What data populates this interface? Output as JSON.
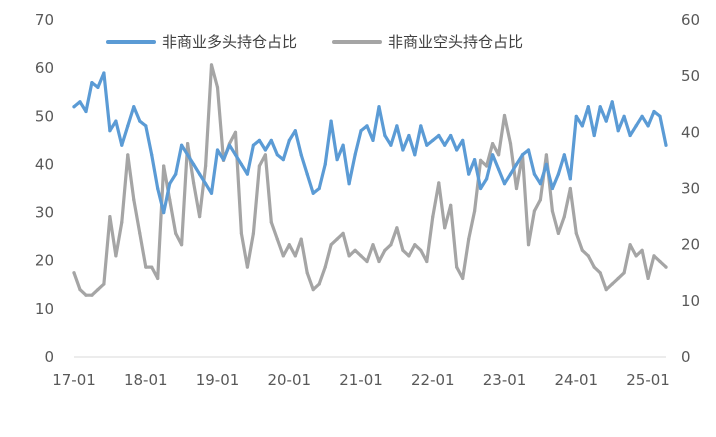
{
  "chart_data": {
    "type": "line",
    "title": "",
    "x_ticks": [
      "17-01",
      "18-01",
      "19-01",
      "20-01",
      "21-01",
      "22-01",
      "23-01",
      "24-01",
      "25-01"
    ],
    "x_range": [
      "2017-01",
      "2025-04"
    ],
    "y_left": {
      "ticks": [
        "0",
        "10",
        "20",
        "30",
        "40",
        "50",
        "60",
        "70"
      ],
      "range": [
        0,
        70
      ]
    },
    "y_right": {
      "ticks": [
        "0",
        "10",
        "20",
        "30",
        "40",
        "50",
        "60"
      ],
      "range": [
        0,
        60
      ]
    },
    "legend_position": "top",
    "grid": false,
    "series": [
      {
        "name": "非商业多头持仓占比",
        "axis": "left",
        "color": "#5b9bd5",
        "points": [
          [
            "2017-01",
            52
          ],
          [
            "2017-02",
            53
          ],
          [
            "2017-03",
            51
          ],
          [
            "2017-04",
            57
          ],
          [
            "2017-05",
            56
          ],
          [
            "2017-06",
            59
          ],
          [
            "2017-07",
            47
          ],
          [
            "2017-08",
            49
          ],
          [
            "2017-09",
            44
          ],
          [
            "2017-10",
            48
          ],
          [
            "2017-11",
            52
          ],
          [
            "2017-12",
            49
          ],
          [
            "2018-01",
            48
          ],
          [
            "2018-02",
            42
          ],
          [
            "2018-03",
            35
          ],
          [
            "2018-04",
            30
          ],
          [
            "2018-05",
            36
          ],
          [
            "2018-06",
            38
          ],
          [
            "2018-07",
            44
          ],
          [
            "2018-08",
            42
          ],
          [
            "2018-09",
            40
          ],
          [
            "2018-10",
            38
          ],
          [
            "2018-11",
            36
          ],
          [
            "2018-12",
            34
          ],
          [
            "2019-01",
            43
          ],
          [
            "2019-02",
            41
          ],
          [
            "2019-03",
            44
          ],
          [
            "2019-04",
            42
          ],
          [
            "2019-05",
            40
          ],
          [
            "2019-06",
            38
          ],
          [
            "2019-07",
            44
          ],
          [
            "2019-08",
            45
          ],
          [
            "2019-09",
            43
          ],
          [
            "2019-10",
            45
          ],
          [
            "2019-11",
            42
          ],
          [
            "2019-12",
            41
          ],
          [
            "2020-01",
            45
          ],
          [
            "2020-02",
            47
          ],
          [
            "2020-03",
            42
          ],
          [
            "2020-04",
            38
          ],
          [
            "2020-05",
            34
          ],
          [
            "2020-06",
            35
          ],
          [
            "2020-07",
            40
          ],
          [
            "2020-08",
            49
          ],
          [
            "2020-09",
            41
          ],
          [
            "2020-10",
            44
          ],
          [
            "2020-11",
            36
          ],
          [
            "2020-12",
            42
          ],
          [
            "2021-01",
            47
          ],
          [
            "2021-02",
            48
          ],
          [
            "2021-03",
            45
          ],
          [
            "2021-04",
            52
          ],
          [
            "2021-05",
            46
          ],
          [
            "2021-06",
            44
          ],
          [
            "2021-07",
            48
          ],
          [
            "2021-08",
            43
          ],
          [
            "2021-09",
            46
          ],
          [
            "2021-10",
            42
          ],
          [
            "2021-11",
            48
          ],
          [
            "2021-12",
            44
          ],
          [
            "2022-01",
            45
          ],
          [
            "2022-02",
            46
          ],
          [
            "2022-03",
            44
          ],
          [
            "2022-04",
            46
          ],
          [
            "2022-05",
            43
          ],
          [
            "2022-06",
            45
          ],
          [
            "2022-07",
            38
          ],
          [
            "2022-08",
            41
          ],
          [
            "2022-09",
            35
          ],
          [
            "2022-10",
            37
          ],
          [
            "2022-11",
            42
          ],
          [
            "2022-12",
            39
          ],
          [
            "2023-01",
            36
          ],
          [
            "2023-02",
            38
          ],
          [
            "2023-03",
            40
          ],
          [
            "2023-04",
            42
          ],
          [
            "2023-05",
            43
          ],
          [
            "2023-06",
            38
          ],
          [
            "2023-07",
            36
          ],
          [
            "2023-08",
            40
          ],
          [
            "2023-09",
            35
          ],
          [
            "2023-10",
            38
          ],
          [
            "2023-11",
            42
          ],
          [
            "2023-12",
            37
          ],
          [
            "2024-01",
            50
          ],
          [
            "2024-02",
            48
          ],
          [
            "2024-03",
            52
          ],
          [
            "2024-04",
            46
          ],
          [
            "2024-05",
            52
          ],
          [
            "2024-06",
            49
          ],
          [
            "2024-07",
            53
          ],
          [
            "2024-08",
            47
          ],
          [
            "2024-09",
            50
          ],
          [
            "2024-10",
            46
          ],
          [
            "2024-11",
            48
          ],
          [
            "2024-12",
            50
          ],
          [
            "2025-01",
            48
          ],
          [
            "2025-02",
            51
          ],
          [
            "2025-03",
            50
          ],
          [
            "2025-04",
            44
          ]
        ]
      },
      {
        "name": "非商业空头持仓占比",
        "axis": "right",
        "color": "#a5a5a5",
        "points": [
          [
            "2017-01",
            15
          ],
          [
            "2017-02",
            12
          ],
          [
            "2017-03",
            11
          ],
          [
            "2017-04",
            11
          ],
          [
            "2017-05",
            12
          ],
          [
            "2017-06",
            13
          ],
          [
            "2017-07",
            25
          ],
          [
            "2017-08",
            18
          ],
          [
            "2017-09",
            24
          ],
          [
            "2017-10",
            36
          ],
          [
            "2017-11",
            28
          ],
          [
            "2017-12",
            22
          ],
          [
            "2018-01",
            16
          ],
          [
            "2018-02",
            16
          ],
          [
            "2018-03",
            14
          ],
          [
            "2018-04",
            34
          ],
          [
            "2018-05",
            28
          ],
          [
            "2018-06",
            22
          ],
          [
            "2018-07",
            20
          ],
          [
            "2018-08",
            38
          ],
          [
            "2018-09",
            31
          ],
          [
            "2018-10",
            25
          ],
          [
            "2018-11",
            34
          ],
          [
            "2018-12",
            52
          ],
          [
            "2019-01",
            48
          ],
          [
            "2019-02",
            35
          ],
          [
            "2019-03",
            38
          ],
          [
            "2019-04",
            40
          ],
          [
            "2019-05",
            22
          ],
          [
            "2019-06",
            16
          ],
          [
            "2019-07",
            22
          ],
          [
            "2019-08",
            34
          ],
          [
            "2019-09",
            36
          ],
          [
            "2019-10",
            24
          ],
          [
            "2019-11",
            21
          ],
          [
            "2019-12",
            18
          ],
          [
            "2020-01",
            20
          ],
          [
            "2020-02",
            18
          ],
          [
            "2020-03",
            21
          ],
          [
            "2020-04",
            15
          ],
          [
            "2020-05",
            12
          ],
          [
            "2020-06",
            13
          ],
          [
            "2020-07",
            16
          ],
          [
            "2020-08",
            20
          ],
          [
            "2020-09",
            21
          ],
          [
            "2020-10",
            22
          ],
          [
            "2020-11",
            18
          ],
          [
            "2020-12",
            19
          ],
          [
            "2021-01",
            18
          ],
          [
            "2021-02",
            17
          ],
          [
            "2021-03",
            20
          ],
          [
            "2021-04",
            17
          ],
          [
            "2021-05",
            19
          ],
          [
            "2021-06",
            20
          ],
          [
            "2021-07",
            23
          ],
          [
            "2021-08",
            19
          ],
          [
            "2021-09",
            18
          ],
          [
            "2021-10",
            20
          ],
          [
            "2021-11",
            19
          ],
          [
            "2021-12",
            17
          ],
          [
            "2022-01",
            25
          ],
          [
            "2022-02",
            31
          ],
          [
            "2022-03",
            23
          ],
          [
            "2022-04",
            27
          ],
          [
            "2022-05",
            16
          ],
          [
            "2022-06",
            14
          ],
          [
            "2022-07",
            21
          ],
          [
            "2022-08",
            26
          ],
          [
            "2022-09",
            35
          ],
          [
            "2022-10",
            34
          ],
          [
            "2022-11",
            38
          ],
          [
            "2022-12",
            36
          ],
          [
            "2023-01",
            43
          ],
          [
            "2023-02",
            38
          ],
          [
            "2023-03",
            30
          ],
          [
            "2023-04",
            36
          ],
          [
            "2023-05",
            20
          ],
          [
            "2023-06",
            26
          ],
          [
            "2023-07",
            28
          ],
          [
            "2023-08",
            36
          ],
          [
            "2023-09",
            26
          ],
          [
            "2023-10",
            22
          ],
          [
            "2023-11",
            25
          ],
          [
            "2023-12",
            30
          ],
          [
            "2024-01",
            22
          ],
          [
            "2024-02",
            19
          ],
          [
            "2024-03",
            18
          ],
          [
            "2024-04",
            16
          ],
          [
            "2024-05",
            15
          ],
          [
            "2024-06",
            12
          ],
          [
            "2024-07",
            13
          ],
          [
            "2024-08",
            14
          ],
          [
            "2024-09",
            15
          ],
          [
            "2024-10",
            20
          ],
          [
            "2024-11",
            18
          ],
          [
            "2024-12",
            19
          ],
          [
            "2025-01",
            14
          ],
          [
            "2025-02",
            18
          ],
          [
            "2025-03",
            17
          ],
          [
            "2025-04",
            16
          ]
        ]
      }
    ]
  }
}
